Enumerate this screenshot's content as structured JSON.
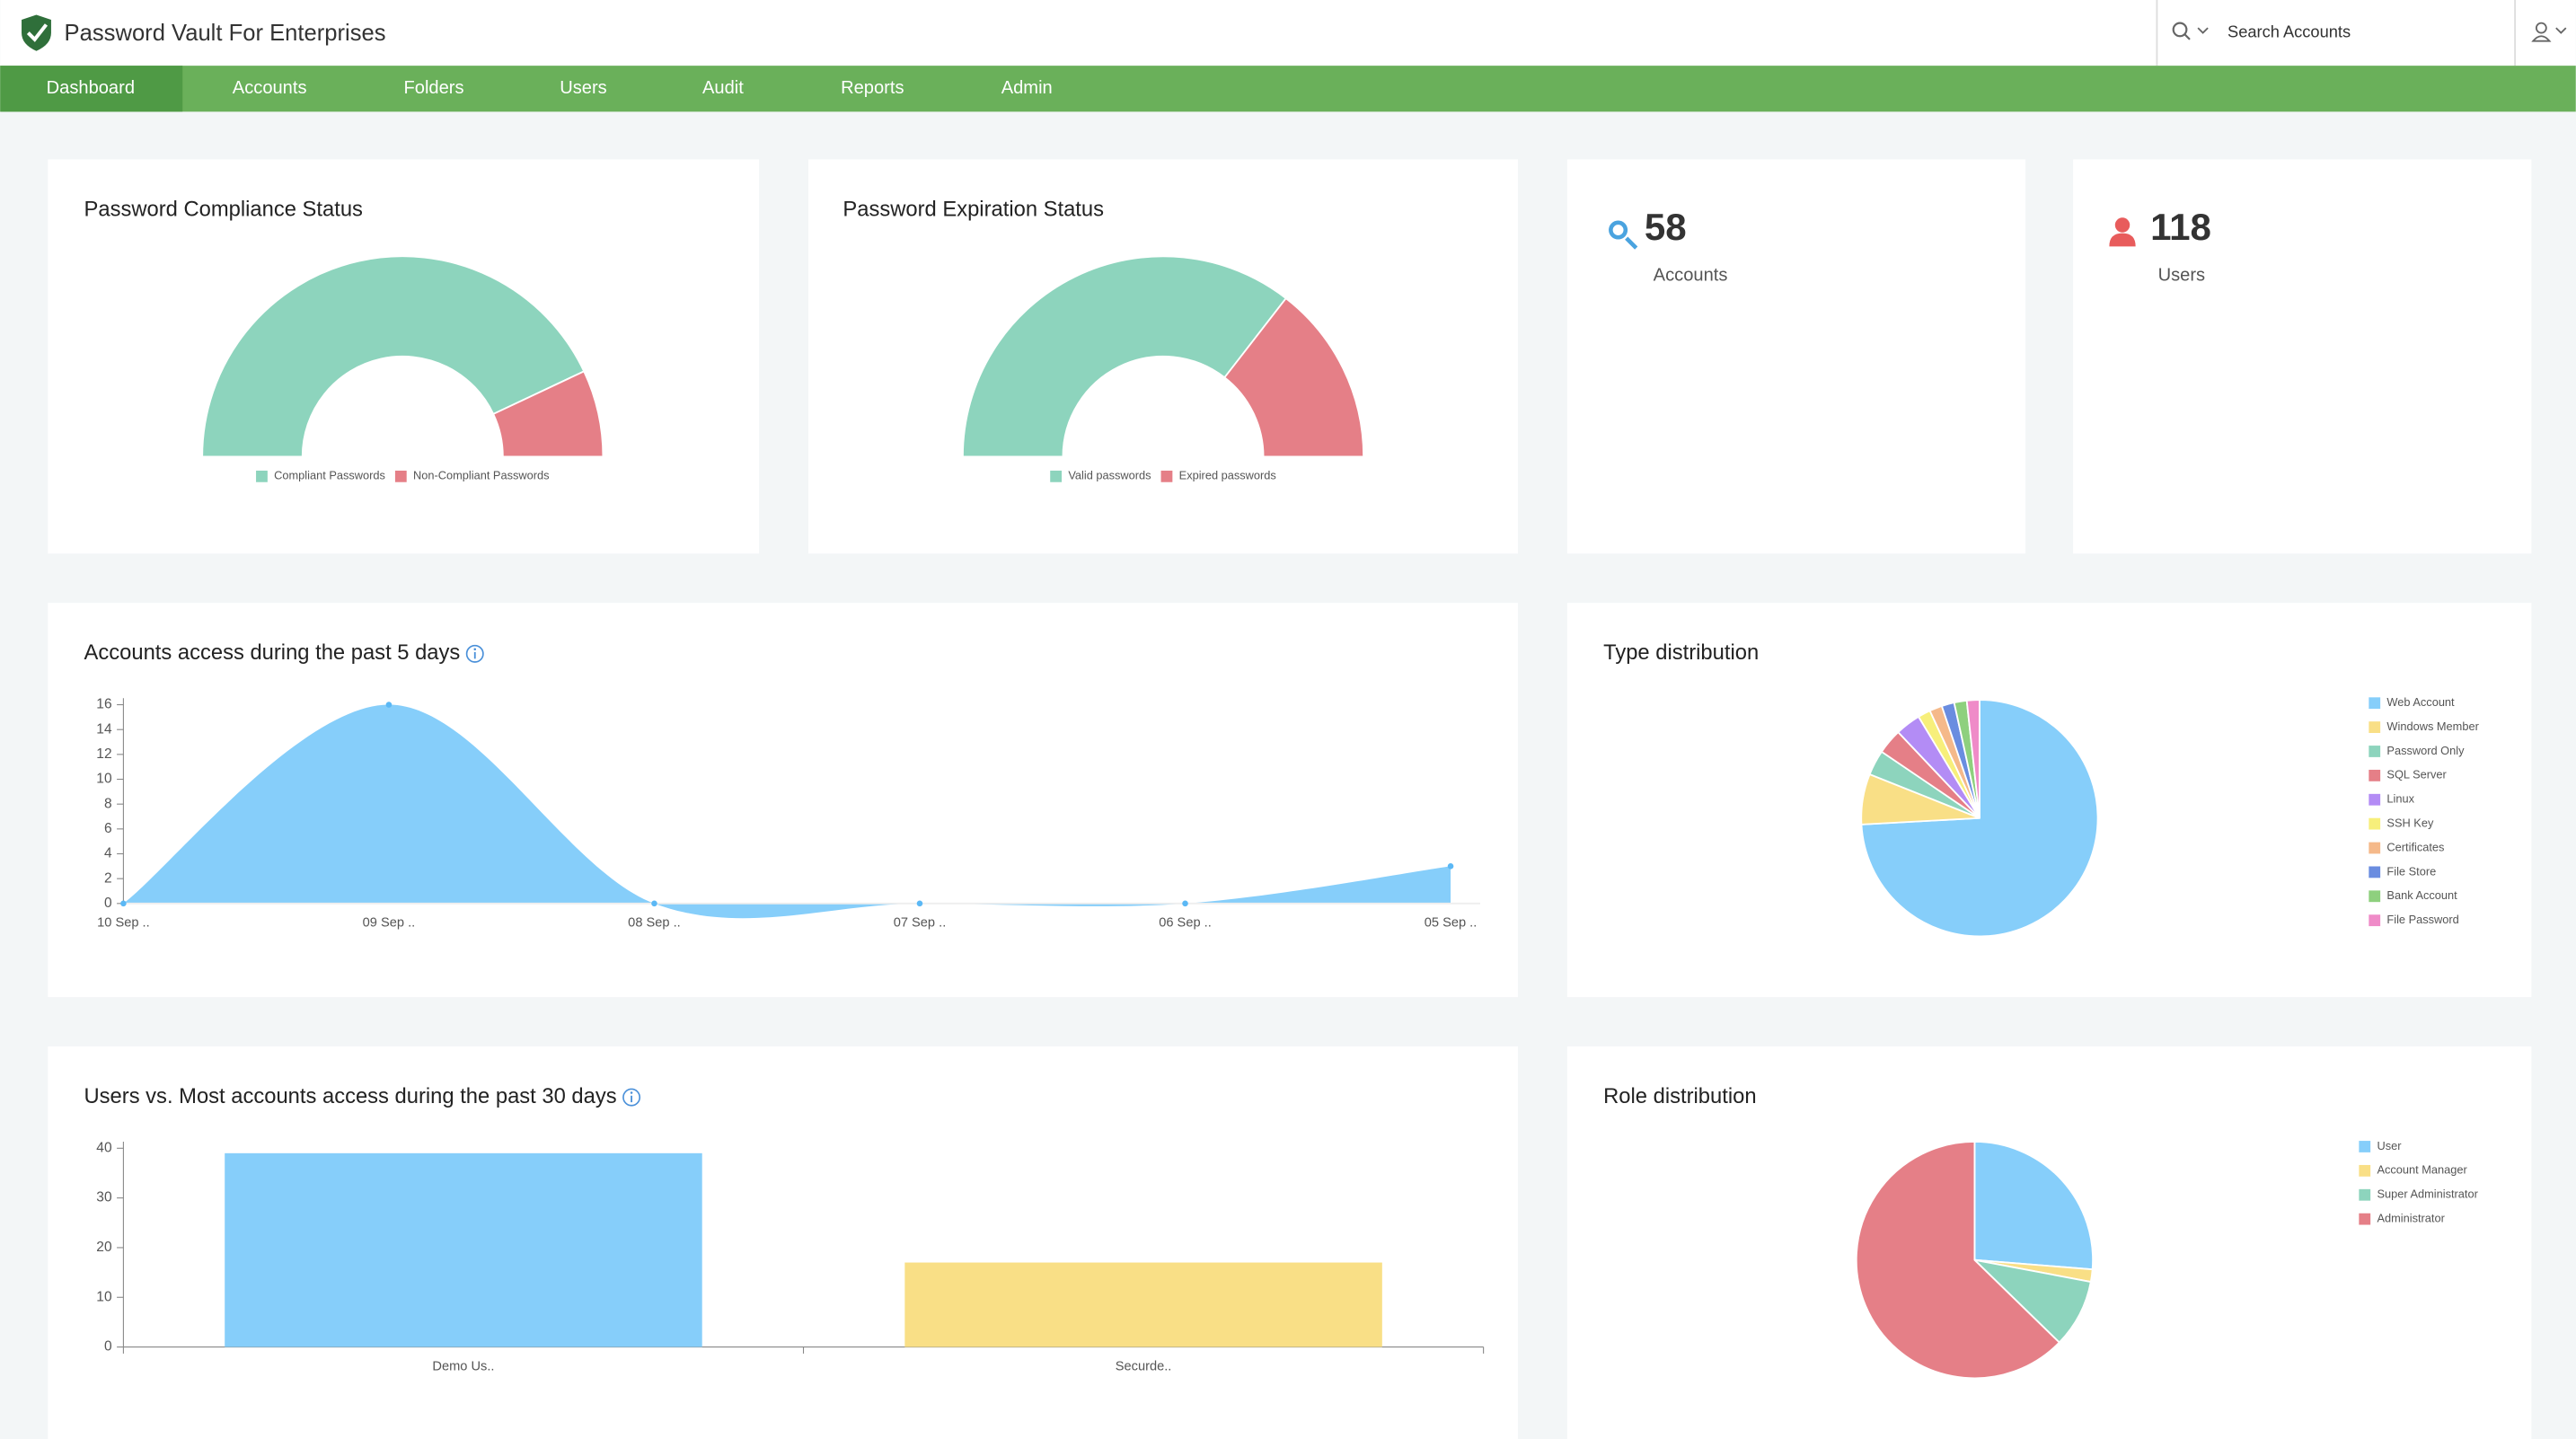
{
  "header": {
    "title": "Password Vault For Enterprises",
    "search_placeholder": "Search Accounts"
  },
  "nav": [
    "Dashboard",
    "Accounts",
    "Folders",
    "Users",
    "Audit",
    "Reports",
    "Admin"
  ],
  "stats": [
    {
      "value": 58,
      "label": "Accounts"
    },
    {
      "value": 118,
      "label": "Users"
    }
  ],
  "chart_data": [
    {
      "type": "half-donut",
      "title": "Password Compliance Status",
      "categories": [
        "Compliant Passwords",
        "Non-Compliant Passwords"
      ],
      "values": [
        86,
        14
      ],
      "colors": [
        "#8dd4bd",
        "#e57f87"
      ]
    },
    {
      "type": "half-donut",
      "title": "Password Expiration Status",
      "categories": [
        "Valid passwords",
        "Expired passwords"
      ],
      "values": [
        71,
        29
      ],
      "colors": [
        "#8dd4bd",
        "#e57f87"
      ]
    },
    {
      "type": "area",
      "title": "Accounts access during the past 5 days",
      "categories": [
        "10 Sep ..",
        "09 Sep ..",
        "08 Sep ..",
        "07 Sep ..",
        "06 Sep ..",
        "05 Sep .."
      ],
      "values": [
        0,
        16,
        0,
        0,
        0,
        3
      ],
      "color": "#86cefa",
      "ylim": [
        0,
        16
      ],
      "yticks": [
        0,
        2,
        4,
        6,
        8,
        10,
        12,
        14,
        16
      ]
    },
    {
      "type": "pie",
      "title": "Type distribution",
      "categories": [
        "Web Account",
        "Windows Member",
        "Password Only",
        "SQL Server",
        "Linux",
        "SSH Key",
        "Certificates",
        "File Store",
        "Bank Account",
        "File Password"
      ],
      "values": [
        43,
        4,
        2,
        2,
        2,
        1,
        1,
        1,
        1,
        1
      ],
      "colors": [
        "#86cefa",
        "#f9df86",
        "#8dd4bd",
        "#e57f87",
        "#b38cf5",
        "#f7ef7b",
        "#f5b98a",
        "#6a8de0",
        "#8ed07e",
        "#ef8bc8"
      ]
    },
    {
      "type": "bar",
      "title": "Users vs. Most accounts access during the past 30 days",
      "categories": [
        "Demo Us..",
        "Securde.."
      ],
      "values": [
        39,
        17
      ],
      "colors": [
        "#86cefa",
        "#f9df86"
      ],
      "ylim": [
        0,
        40
      ],
      "yticks": [
        0,
        10,
        20,
        30,
        40
      ]
    },
    {
      "type": "pie",
      "title": "Role distribution",
      "categories": [
        "User",
        "Account Manager",
        "Super Administrator",
        "Administrator"
      ],
      "values": [
        31,
        2,
        11,
        74
      ],
      "colors": [
        "#86cefa",
        "#f9df86",
        "#8dd4bd",
        "#e57f87"
      ]
    }
  ]
}
